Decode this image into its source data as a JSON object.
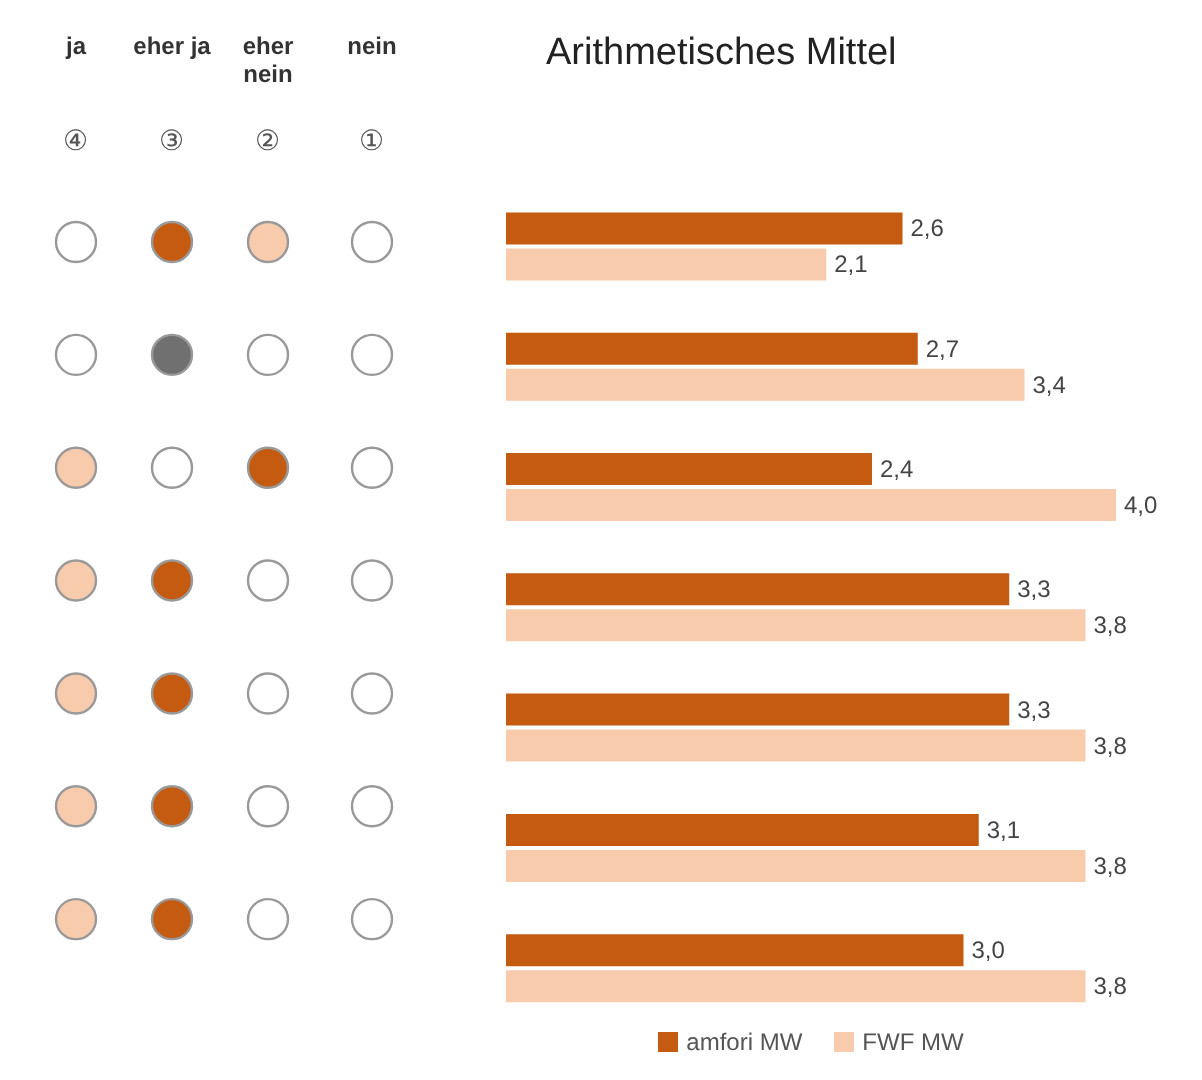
{
  "chart_data": {
    "type": "bar",
    "orientation": "horizontal",
    "title": "Arithmetisches Mittel",
    "annotations": [
      "ja",
      "eher ja",
      "eher nein",
      "nein",
      "④",
      "③",
      "②",
      "①"
    ],
    "categories": [
      null,
      null,
      null,
      null,
      null,
      null,
      null
    ],
    "series": [
      {
        "name": "amfori MW",
        "color": "#c55a11",
        "values": [
          2.6,
          2.7,
          2.4,
          3.3,
          3.3,
          3.1,
          3.0
        ],
        "value_labels": [
          "2,6",
          "2,7",
          "2,4",
          "3,3",
          "3,3",
          "3,1",
          "3,0"
        ]
      },
      {
        "name": "FWF MW",
        "color": "#f8cbad",
        "values": [
          2.1,
          3.4,
          4.0,
          3.8,
          3.8,
          3.8,
          3.8
        ],
        "value_labels": [
          "2,1",
          "3,4",
          "4,0",
          "3,8",
          "3,8",
          "3,8",
          "3,8"
        ]
      }
    ],
    "legend": "bottom",
    "grid": false
  }
}
